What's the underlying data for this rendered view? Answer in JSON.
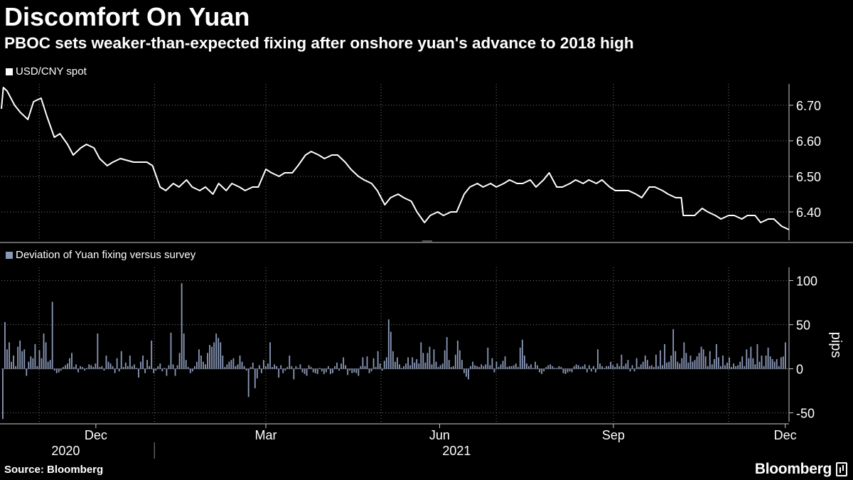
{
  "header": {
    "title": "Discomfort On Yuan",
    "subtitle": "PBOC sets weaker-than-expected fixing after onshore yuan's advance to 2018 high"
  },
  "footer": {
    "source": "Source: Bloomberg",
    "brand": "Bloomberg"
  },
  "colors": {
    "background": "#000000",
    "line": "#ffffff",
    "bars": "#8a98b8",
    "grid": "#777777"
  },
  "chart_data": [
    {
      "type": "line",
      "legend": "USD/CNY spot",
      "series": [
        {
          "name": "USD/CNY spot",
          "color": "#ffffff"
        }
      ],
      "x_start": "2020-10-12",
      "x_end": "2021-12-03",
      "ylim": [
        6.32,
        6.76
      ],
      "yticks": [
        "6.70",
        "6.60",
        "6.50",
        "6.40"
      ],
      "ytick_values": [
        6.7,
        6.6,
        6.5,
        6.4
      ],
      "anchors": [
        [
          "2020-10-12",
          6.69
        ],
        [
          "2020-10-13",
          6.75
        ],
        [
          "2020-10-15",
          6.74
        ],
        [
          "2020-10-19",
          6.7
        ],
        [
          "2020-10-22",
          6.68
        ],
        [
          "2020-10-26",
          6.66
        ],
        [
          "2020-10-29",
          6.71
        ],
        [
          "2020-11-02",
          6.72
        ],
        [
          "2020-11-05",
          6.67
        ],
        [
          "2020-11-09",
          6.61
        ],
        [
          "2020-11-12",
          6.62
        ],
        [
          "2020-11-16",
          6.59
        ],
        [
          "2020-11-19",
          6.56
        ],
        [
          "2020-11-23",
          6.58
        ],
        [
          "2020-11-26",
          6.59
        ],
        [
          "2020-11-30",
          6.58
        ],
        [
          "2020-12-03",
          6.55
        ],
        [
          "2020-12-07",
          6.53
        ],
        [
          "2020-12-10",
          6.54
        ],
        [
          "2020-12-14",
          6.55
        ],
        [
          "2020-12-21",
          6.54
        ],
        [
          "2020-12-28",
          6.54
        ],
        [
          "2020-12-31",
          6.53
        ],
        [
          "2021-01-04",
          6.47
        ],
        [
          "2021-01-07",
          6.46
        ],
        [
          "2021-01-11",
          6.48
        ],
        [
          "2021-01-14",
          6.47
        ],
        [
          "2021-01-18",
          6.49
        ],
        [
          "2021-01-21",
          6.47
        ],
        [
          "2021-01-25",
          6.46
        ],
        [
          "2021-01-28",
          6.47
        ],
        [
          "2021-02-01",
          6.45
        ],
        [
          "2021-02-04",
          6.48
        ],
        [
          "2021-02-08",
          6.46
        ],
        [
          "2021-02-11",
          6.48
        ],
        [
          "2021-02-15",
          6.47
        ],
        [
          "2021-02-18",
          6.46
        ],
        [
          "2021-02-22",
          6.47
        ],
        [
          "2021-02-25",
          6.47
        ],
        [
          "2021-03-01",
          6.52
        ],
        [
          "2021-03-04",
          6.51
        ],
        [
          "2021-03-08",
          6.5
        ],
        [
          "2021-03-11",
          6.51
        ],
        [
          "2021-03-15",
          6.51
        ],
        [
          "2021-03-18",
          6.53
        ],
        [
          "2021-03-22",
          6.56
        ],
        [
          "2021-03-25",
          6.57
        ],
        [
          "2021-03-29",
          6.56
        ],
        [
          "2021-04-01",
          6.55
        ],
        [
          "2021-04-05",
          6.56
        ],
        [
          "2021-04-08",
          6.56
        ],
        [
          "2021-04-12",
          6.54
        ],
        [
          "2021-04-15",
          6.52
        ],
        [
          "2021-04-19",
          6.5
        ],
        [
          "2021-04-22",
          6.49
        ],
        [
          "2021-04-26",
          6.48
        ],
        [
          "2021-04-29",
          6.46
        ],
        [
          "2021-05-03",
          6.42
        ],
        [
          "2021-05-06",
          6.44
        ],
        [
          "2021-05-10",
          6.45
        ],
        [
          "2021-05-13",
          6.44
        ],
        [
          "2021-05-17",
          6.43
        ],
        [
          "2021-05-20",
          6.4
        ],
        [
          "2021-05-24",
          6.37
        ],
        [
          "2021-05-27",
          6.39
        ],
        [
          "2021-05-31",
          6.4
        ],
        [
          "2021-06-03",
          6.39
        ],
        [
          "2021-06-07",
          6.4
        ],
        [
          "2021-06-10",
          6.4
        ],
        [
          "2021-06-14",
          6.45
        ],
        [
          "2021-06-17",
          6.47
        ],
        [
          "2021-06-21",
          6.48
        ],
        [
          "2021-06-24",
          6.47
        ],
        [
          "2021-06-28",
          6.48
        ],
        [
          "2021-07-01",
          6.47
        ],
        [
          "2021-07-05",
          6.48
        ],
        [
          "2021-07-08",
          6.49
        ],
        [
          "2021-07-12",
          6.48
        ],
        [
          "2021-07-15",
          6.48
        ],
        [
          "2021-07-19",
          6.49
        ],
        [
          "2021-07-22",
          6.47
        ],
        [
          "2021-07-26",
          6.49
        ],
        [
          "2021-07-29",
          6.51
        ],
        [
          "2021-08-02",
          6.47
        ],
        [
          "2021-08-05",
          6.47
        ],
        [
          "2021-08-09",
          6.48
        ],
        [
          "2021-08-12",
          6.49
        ],
        [
          "2021-08-16",
          6.48
        ],
        [
          "2021-08-19",
          6.49
        ],
        [
          "2021-08-23",
          6.48
        ],
        [
          "2021-08-26",
          6.49
        ],
        [
          "2021-08-30",
          6.47
        ],
        [
          "2021-09-02",
          6.46
        ],
        [
          "2021-09-06",
          6.46
        ],
        [
          "2021-09-09",
          6.46
        ],
        [
          "2021-09-13",
          6.45
        ],
        [
          "2021-09-16",
          6.44
        ],
        [
          "2021-09-20",
          6.47
        ],
        [
          "2021-09-23",
          6.47
        ],
        [
          "2021-09-27",
          6.46
        ],
        [
          "2021-09-30",
          6.45
        ],
        [
          "2021-10-04",
          6.44
        ],
        [
          "2021-10-07",
          6.44
        ],
        [
          "2021-10-08",
          6.39
        ],
        [
          "2021-10-11",
          6.39
        ],
        [
          "2021-10-14",
          6.39
        ],
        [
          "2021-10-18",
          6.41
        ],
        [
          "2021-10-21",
          6.4
        ],
        [
          "2021-10-25",
          6.39
        ],
        [
          "2021-10-28",
          6.38
        ],
        [
          "2021-11-01",
          6.39
        ],
        [
          "2021-11-04",
          6.39
        ],
        [
          "2021-11-08",
          6.38
        ],
        [
          "2021-11-11",
          6.39
        ],
        [
          "2021-11-15",
          6.39
        ],
        [
          "2021-11-18",
          6.37
        ],
        [
          "2021-11-22",
          6.38
        ],
        [
          "2021-11-25",
          6.38
        ],
        [
          "2021-11-29",
          6.36
        ],
        [
          "2021-12-03",
          6.35
        ]
      ]
    },
    {
      "type": "bar",
      "legend": "Deviation of Yuan fixing versus survey",
      "series": [
        {
          "name": "Deviation of Yuan fixing versus survey",
          "color": "#8a98b8"
        }
      ],
      "x_start": "2020-10-12",
      "x_end": "2021-12-03",
      "ylabel": "pips",
      "ylim": [
        -60,
        115
      ],
      "yticks": [
        "100",
        "50",
        "0",
        "-50"
      ],
      "ytick_values": [
        100,
        50,
        0,
        -50
      ],
      "values": [
        -57,
        53,
        22,
        30,
        8,
        15,
        3,
        25,
        32,
        20,
        22,
        -8,
        8,
        14,
        12,
        28,
        3,
        21,
        12,
        40,
        30,
        8,
        10,
        76,
        -2,
        -5,
        -4,
        -2,
        2,
        4,
        6,
        12,
        18,
        2,
        5,
        -4,
        3,
        2,
        -2,
        1,
        5,
        4,
        2,
        6,
        40,
        2,
        3,
        -2,
        15,
        8,
        6,
        3,
        -5,
        12,
        -3,
        20,
        2,
        7,
        3,
        15,
        3,
        5,
        1,
        -10,
        8,
        15,
        -5,
        10,
        3,
        32,
        -5,
        -2,
        3,
        6,
        -3,
        1,
        -8,
        4,
        41,
        5,
        -8,
        4,
        18,
        97,
        40,
        10,
        2,
        -5,
        -3,
        3,
        8,
        22,
        15,
        8,
        5,
        18,
        27,
        25,
        30,
        40,
        35,
        30,
        15,
        2,
        5,
        8,
        10,
        12,
        3,
        5,
        15,
        8,
        3,
        -2,
        -32,
        2,
        7,
        -22,
        -11,
        4,
        -5,
        10,
        3,
        6,
        30,
        2,
        5,
        3,
        -10,
        4,
        -5,
        -2,
        2,
        15,
        3,
        -12,
        3,
        1,
        5,
        -4,
        -6,
        -8,
        4,
        2,
        -4,
        -5,
        -6,
        1,
        -3,
        -6,
        -4,
        3,
        -6,
        -5,
        3,
        7,
        -2,
        6,
        13,
        4,
        -7,
        -2,
        -5,
        -4,
        -5,
        -8,
        3,
        13,
        3,
        14,
        -5,
        -3,
        12,
        2,
        20,
        6,
        -2,
        9,
        13,
        56,
        42,
        20,
        8,
        13,
        5,
        1,
        3,
        6,
        13,
        4,
        13,
        7,
        11,
        6,
        30,
        18,
        7,
        18,
        25,
        5,
        22,
        8,
        2,
        4,
        6,
        21,
        36,
        10,
        2,
        3,
        16,
        32,
        21,
        10,
        -5,
        -9,
        -12,
        3,
        8,
        4,
        3,
        2,
        5,
        3,
        5,
        24,
        4,
        12,
        -4,
        8,
        2,
        5,
        9,
        14,
        2,
        3,
        3,
        4,
        6,
        2,
        24,
        33,
        15,
        6,
        3,
        5,
        1,
        8,
        4,
        -4,
        -6,
        -3,
        2,
        4,
        5,
        3,
        1,
        1,
        3,
        2,
        -5,
        -6,
        -4,
        -3,
        -4,
        3,
        5,
        4,
        2,
        3,
        5,
        -4,
        4,
        -3,
        3,
        -4,
        22,
        6,
        3,
        1,
        3,
        3,
        8,
        4,
        2,
        6,
        3,
        16,
        3,
        6,
        10,
        -3,
        4,
        -3,
        12,
        2,
        5,
        8,
        15,
        10,
        3,
        4,
        2,
        16,
        3,
        21,
        4,
        28,
        7,
        8,
        15,
        45,
        20,
        8,
        6,
        12,
        30,
        18,
        7,
        15,
        8,
        10,
        14,
        18,
        25,
        22,
        14,
        3,
        20,
        5,
        11,
        28,
        13,
        3,
        15,
        4,
        7,
        13,
        2,
        6,
        3,
        4,
        8,
        14,
        3,
        22,
        12,
        25,
        12,
        5,
        28,
        8,
        15,
        3,
        15,
        24,
        14,
        11,
        8,
        11,
        3,
        13,
        14,
        30
      ]
    }
  ],
  "x_axis": {
    "month_labels": [
      {
        "label": "Dec",
        "date": "2020-12-01"
      },
      {
        "label": "Mar",
        "date": "2021-03-01"
      },
      {
        "label": "Jun",
        "date": "2021-06-01"
      },
      {
        "label": "Sep",
        "date": "2021-09-01"
      },
      {
        "label": "Dec",
        "date": "2021-12-01"
      }
    ],
    "year_labels": [
      {
        "label": "2020",
        "date": "2020-11-15"
      },
      {
        "label": "2021",
        "date": "2021-06-10"
      }
    ],
    "year_divider": "2021-01-01",
    "gridline_dates": [
      "2020-11-01",
      "2021-01-01",
      "2021-03-01",
      "2021-05-01",
      "2021-07-01",
      "2021-09-01",
      "2021-11-01"
    ]
  }
}
